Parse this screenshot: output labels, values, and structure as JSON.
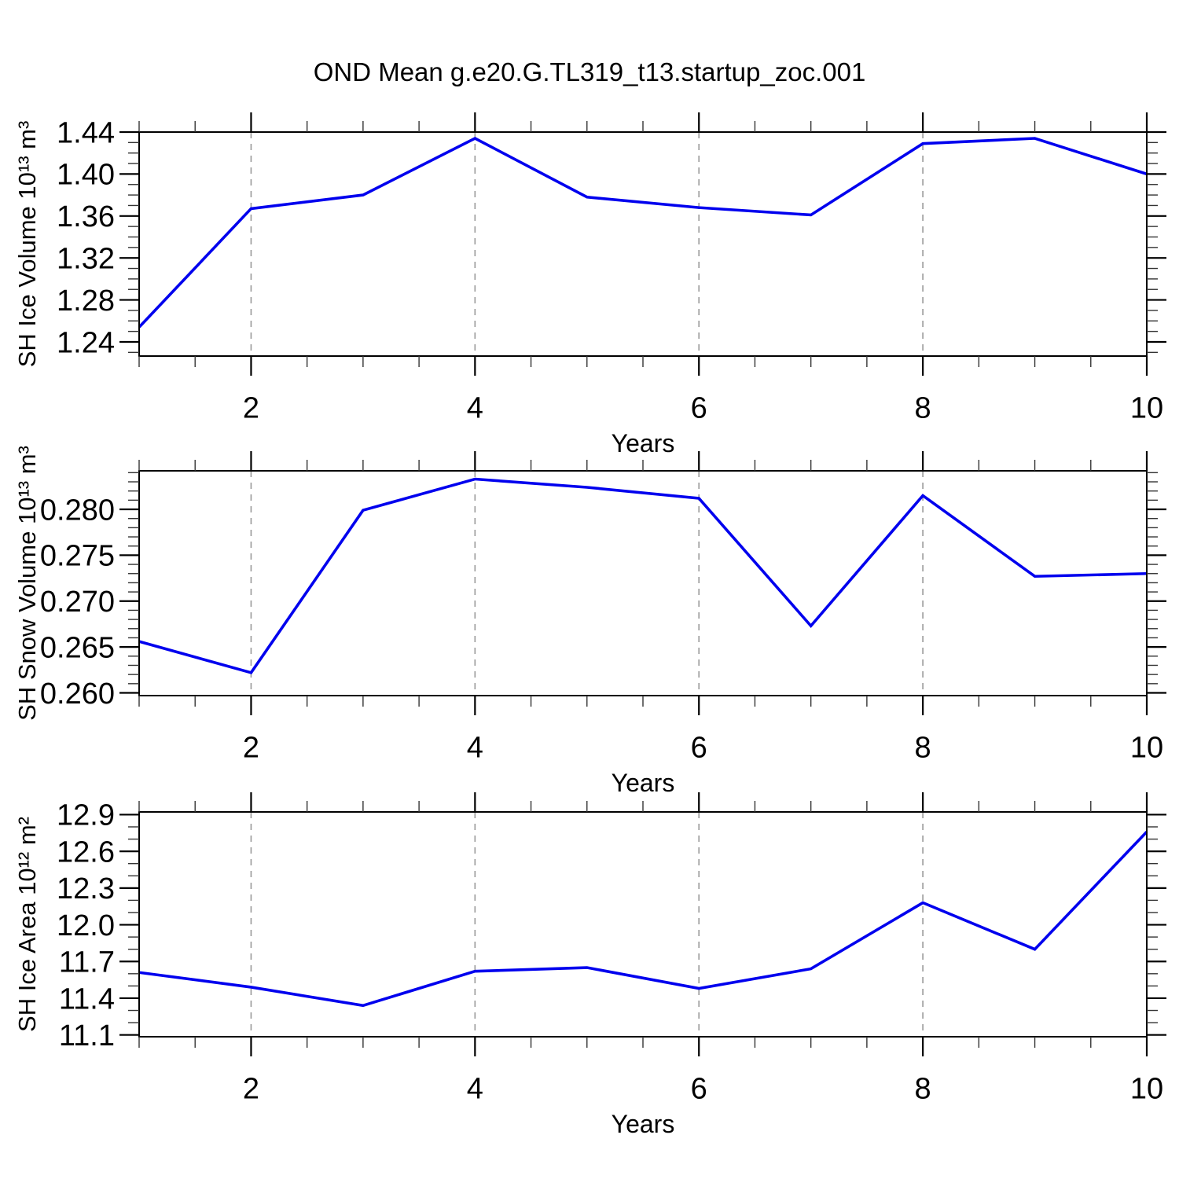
{
  "title": "OND Mean g.e20.G.TL319_t13.startup_zoc.001",
  "style": {
    "line_color": "#0000ee",
    "grid_color": "#999999",
    "axis_color": "#000000",
    "minor_tick_color": "#333333",
    "background": "#ffffff",
    "text_color": "#000000"
  },
  "chart_data": [
    {
      "type": "line",
      "title": "OND Mean g.e20.G.TL319_t13.startup_zoc.001",
      "xlabel": "Years",
      "ylabel": "SH Ice Volume 10¹³ m³",
      "x": [
        1,
        2,
        3,
        4,
        5,
        6,
        7,
        8,
        9,
        10
      ],
      "series": [
        {
          "name": "SH Ice Volume",
          "values": [
            1.254,
            1.367,
            1.38,
            1.434,
            1.378,
            1.368,
            1.361,
            1.429,
            1.434,
            1.4
          ]
        }
      ],
      "xlim": [
        1,
        10
      ],
      "ylim": [
        1.2265,
        1.44
      ],
      "xticks": {
        "major": [
          2,
          4,
          6,
          8,
          10
        ],
        "labels": [
          "2",
          "4",
          "6",
          "8",
          "10"
        ],
        "minor_step": 0.5
      },
      "yticks": {
        "major": [
          1.24,
          1.28,
          1.32,
          1.36,
          1.4,
          1.44
        ],
        "labels": [
          "1.24",
          "1.28",
          "1.32",
          "1.36",
          "1.40",
          "1.44"
        ],
        "minor_step": 0.01
      },
      "grid_x": [
        2,
        4,
        6,
        8
      ],
      "grid_style": "vertical-dashed",
      "legend": "none"
    },
    {
      "type": "line",
      "title": "",
      "xlabel": "Years",
      "ylabel": "SH Snow Volume 10¹³ m³",
      "x": [
        1,
        2,
        3,
        4,
        5,
        6,
        7,
        8,
        9,
        10
      ],
      "series": [
        {
          "name": "SH Snow Volume",
          "values": [
            0.2656,
            0.2622,
            0.2799,
            0.2833,
            0.2824,
            0.2812,
            0.2673,
            0.2815,
            0.2727,
            0.273
          ]
        }
      ],
      "xlim": [
        1,
        10
      ],
      "ylim": [
        0.2597,
        0.2842
      ],
      "xticks": {
        "major": [
          2,
          4,
          6,
          8,
          10
        ],
        "labels": [
          "2",
          "4",
          "6",
          "8",
          "10"
        ],
        "minor_step": 0.5
      },
      "yticks": {
        "major": [
          0.26,
          0.265,
          0.27,
          0.275,
          0.28
        ],
        "labels": [
          "0.260",
          "0.265",
          "0.270",
          "0.275",
          "0.280"
        ],
        "minor_step": 0.001
      },
      "grid_x": [
        2,
        4,
        6,
        8
      ],
      "grid_style": "vertical-dashed",
      "legend": "none"
    },
    {
      "type": "line",
      "title": "",
      "xlabel": "Years",
      "ylabel": "SH Ice Area 10¹² m²",
      "x": [
        1,
        2,
        3,
        4,
        5,
        6,
        7,
        8,
        9,
        10
      ],
      "series": [
        {
          "name": "SH Ice Area",
          "values": [
            11.61,
            11.49,
            11.34,
            11.62,
            11.65,
            11.48,
            11.64,
            12.18,
            11.8,
            12.76
          ]
        }
      ],
      "xlim": [
        1,
        10
      ],
      "ylim": [
        11.085,
        12.922
      ],
      "xticks": {
        "major": [
          2,
          4,
          6,
          8,
          10
        ],
        "labels": [
          "2",
          "4",
          "6",
          "8",
          "10"
        ],
        "minor_step": 0.5
      },
      "yticks": {
        "major": [
          11.1,
          11.4,
          11.7,
          12.0,
          12.3,
          12.6,
          12.9
        ],
        "labels": [
          "11.1",
          "11.4",
          "11.7",
          "12.0",
          "12.3",
          "12.6",
          "12.9"
        ],
        "minor_step": 0.1
      },
      "grid_x": [
        2,
        4,
        6,
        8
      ],
      "grid_style": "vertical-dashed",
      "legend": "none"
    }
  ]
}
